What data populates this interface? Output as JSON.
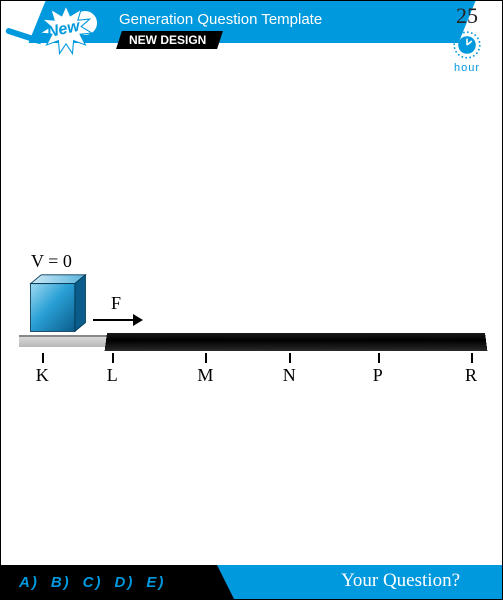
{
  "header": {
    "burst_label": "New",
    "title": "Generation Question Template",
    "subtitle": "NEW DESIGN",
    "hour_number": "25",
    "hour_label": "hour"
  },
  "diagram": {
    "velocity_label": "V = 0",
    "force_label": "F",
    "cube": {
      "fill_top": "#7fc8e8",
      "fill_mid": "#1b8fc9",
      "fill_dark": "#0a5d8a",
      "stroke": "#053a57"
    },
    "arrow_color": "#000000",
    "track_light_color": "#c8c8c8",
    "track_dark_color": "#111111",
    "ticks": [
      {
        "label": "K",
        "x_pct": 5
      },
      {
        "label": "L",
        "x_pct": 20
      },
      {
        "label": "M",
        "x_pct": 40
      },
      {
        "label": "N",
        "x_pct": 58
      },
      {
        "label": "P",
        "x_pct": 77
      },
      {
        "label": "R",
        "x_pct": 97
      }
    ]
  },
  "footer": {
    "options": [
      "A)",
      "B)",
      "C)",
      "D)",
      "E)"
    ],
    "question_prompt": "Your Question?"
  },
  "colors": {
    "brand_blue": "#0099dd",
    "black": "#000000",
    "white": "#ffffff"
  }
}
